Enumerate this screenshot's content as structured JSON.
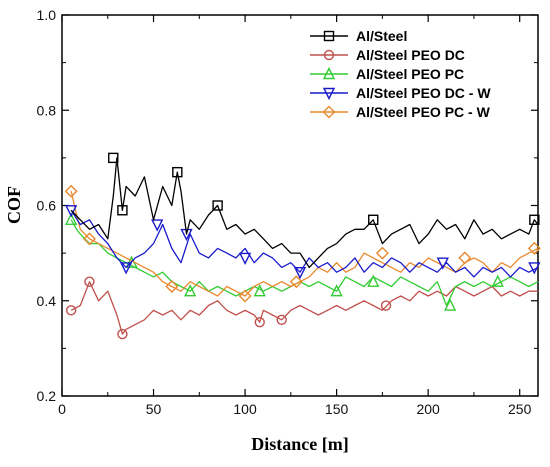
{
  "chart_data": {
    "type": "line",
    "xlabel": "Distance [m]",
    "ylabel": "COF",
    "xlim": [
      0,
      260
    ],
    "ylim": [
      0.2,
      1.0
    ],
    "xticks": [
      0,
      50,
      100,
      150,
      200,
      250
    ],
    "yticks": [
      0.2,
      0.4,
      0.6,
      0.8,
      1.0
    ],
    "legend_position": "top-right",
    "grid": false,
    "series": [
      {
        "name": "Al/Steel",
        "color": "#000000",
        "marker": "square",
        "x": [
          5,
          10,
          15,
          20,
          25,
          28,
          30,
          33,
          35,
          40,
          45,
          50,
          55,
          60,
          63,
          65,
          68,
          70,
          75,
          80,
          85,
          90,
          95,
          100,
          105,
          110,
          115,
          120,
          125,
          130,
          135,
          140,
          145,
          150,
          155,
          160,
          165,
          170,
          175,
          180,
          185,
          190,
          195,
          200,
          205,
          210,
          215,
          220,
          225,
          230,
          235,
          240,
          245,
          250,
          255,
          258,
          260
        ],
        "y": [
          0.59,
          0.57,
          0.55,
          0.56,
          0.53,
          0.62,
          0.7,
          0.59,
          0.64,
          0.62,
          0.66,
          0.57,
          0.64,
          0.6,
          0.67,
          0.63,
          0.54,
          0.57,
          0.55,
          0.58,
          0.6,
          0.55,
          0.56,
          0.54,
          0.55,
          0.53,
          0.51,
          0.52,
          0.5,
          0.5,
          0.47,
          0.49,
          0.51,
          0.52,
          0.54,
          0.55,
          0.55,
          0.57,
          0.52,
          0.54,
          0.55,
          0.56,
          0.52,
          0.54,
          0.57,
          0.55,
          0.56,
          0.53,
          0.57,
          0.54,
          0.55,
          0.53,
          0.54,
          0.55,
          0.54,
          0.57,
          0.56
        ],
        "marker_x": [
          28,
          33,
          63,
          85,
          170,
          258
        ],
        "marker_y": [
          0.7,
          0.59,
          0.67,
          0.6,
          0.57,
          0.57
        ]
      },
      {
        "name": "Al/Steel PEO DC",
        "color": "#c0504d",
        "marker": "circle",
        "x": [
          5,
          10,
          15,
          20,
          25,
          30,
          33,
          35,
          40,
          45,
          50,
          55,
          60,
          65,
          70,
          75,
          80,
          85,
          90,
          95,
          100,
          105,
          108,
          110,
          115,
          120,
          125,
          130,
          135,
          140,
          145,
          150,
          155,
          160,
          165,
          170,
          175,
          180,
          185,
          190,
          195,
          200,
          205,
          210,
          215,
          220,
          225,
          230,
          235,
          240,
          245,
          250,
          255,
          260
        ],
        "y": [
          0.38,
          0.39,
          0.44,
          0.4,
          0.42,
          0.37,
          0.33,
          0.34,
          0.35,
          0.36,
          0.38,
          0.37,
          0.38,
          0.36,
          0.38,
          0.37,
          0.39,
          0.4,
          0.38,
          0.37,
          0.38,
          0.37,
          0.355,
          0.38,
          0.37,
          0.36,
          0.38,
          0.39,
          0.38,
          0.37,
          0.38,
          0.39,
          0.38,
          0.39,
          0.4,
          0.39,
          0.38,
          0.4,
          0.41,
          0.4,
          0.42,
          0.41,
          0.42,
          0.41,
          0.43,
          0.42,
          0.41,
          0.42,
          0.43,
          0.41,
          0.42,
          0.41,
          0.42,
          0.42
        ],
        "marker_x": [
          5,
          15,
          33,
          108,
          120,
          177
        ],
        "marker_y": [
          0.38,
          0.44,
          0.33,
          0.355,
          0.36,
          0.39
        ]
      },
      {
        "name": "Al/Steel PEO PC",
        "color": "#33cc33",
        "marker": "triangle-up",
        "x": [
          5,
          8,
          10,
          15,
          20,
          25,
          30,
          35,
          40,
          45,
          50,
          55,
          60,
          65,
          70,
          75,
          80,
          85,
          90,
          95,
          100,
          105,
          110,
          115,
          120,
          125,
          130,
          135,
          140,
          145,
          150,
          155,
          160,
          165,
          170,
          175,
          180,
          185,
          190,
          195,
          200,
          205,
          210,
          215,
          220,
          225,
          230,
          235,
          240,
          245,
          250,
          255,
          260
        ],
        "y": [
          0.57,
          0.55,
          0.54,
          0.52,
          0.52,
          0.5,
          0.49,
          0.48,
          0.47,
          0.46,
          0.45,
          0.46,
          0.44,
          0.43,
          0.42,
          0.44,
          0.42,
          0.43,
          0.42,
          0.41,
          0.42,
          0.43,
          0.42,
          0.43,
          0.42,
          0.43,
          0.44,
          0.43,
          0.44,
          0.43,
          0.42,
          0.45,
          0.44,
          0.43,
          0.45,
          0.44,
          0.43,
          0.45,
          0.44,
          0.43,
          0.42,
          0.44,
          0.39,
          0.43,
          0.44,
          0.43,
          0.44,
          0.43,
          0.44,
          0.45,
          0.44,
          0.43,
          0.44
        ],
        "marker_x": [
          5,
          38,
          70,
          108,
          150,
          170,
          212,
          238
        ],
        "marker_y": [
          0.57,
          0.48,
          0.42,
          0.42,
          0.42,
          0.44,
          0.39,
          0.44
        ]
      },
      {
        "name": "Al/Steel PEO DC - W",
        "color": "#1a1acc",
        "marker": "triangle-down",
        "x": [
          5,
          10,
          15,
          20,
          25,
          30,
          35,
          40,
          45,
          50,
          55,
          60,
          65,
          70,
          75,
          80,
          85,
          90,
          95,
          100,
          105,
          110,
          115,
          120,
          125,
          130,
          135,
          140,
          145,
          150,
          155,
          160,
          165,
          170,
          175,
          180,
          185,
          190,
          195,
          200,
          205,
          210,
          215,
          220,
          225,
          230,
          235,
          240,
          245,
          250,
          255,
          260
        ],
        "y": [
          0.59,
          0.56,
          0.57,
          0.54,
          0.52,
          0.49,
          0.47,
          0.49,
          0.5,
          0.52,
          0.56,
          0.51,
          0.48,
          0.54,
          0.5,
          0.49,
          0.51,
          0.5,
          0.49,
          0.51,
          0.48,
          0.5,
          0.49,
          0.47,
          0.48,
          0.46,
          0.49,
          0.47,
          0.48,
          0.46,
          0.47,
          0.49,
          0.46,
          0.48,
          0.47,
          0.49,
          0.48,
          0.46,
          0.48,
          0.47,
          0.46,
          0.48,
          0.46,
          0.47,
          0.45,
          0.47,
          0.46,
          0.47,
          0.45,
          0.47,
          0.46,
          0.47
        ],
        "marker_x": [
          5,
          35,
          52,
          68,
          100,
          130,
          208,
          258
        ],
        "marker_y": [
          0.59,
          0.47,
          0.56,
          0.54,
          0.49,
          0.46,
          0.48,
          0.47
        ]
      },
      {
        "name": "Al/Steel PEO PC - W",
        "color": "#e8892e",
        "marker": "diamond",
        "x": [
          5,
          8,
          10,
          15,
          20,
          25,
          30,
          35,
          40,
          45,
          50,
          55,
          60,
          65,
          70,
          75,
          80,
          85,
          90,
          95,
          100,
          105,
          110,
          115,
          120,
          125,
          130,
          135,
          140,
          145,
          150,
          155,
          160,
          165,
          170,
          175,
          180,
          185,
          190,
          195,
          200,
          205,
          210,
          215,
          220,
          225,
          230,
          235,
          240,
          245,
          250,
          255,
          260
        ],
        "y": [
          0.63,
          0.58,
          0.55,
          0.53,
          0.52,
          0.51,
          0.5,
          0.49,
          0.48,
          0.47,
          0.46,
          0.44,
          0.43,
          0.42,
          0.44,
          0.43,
          0.42,
          0.41,
          0.43,
          0.42,
          0.41,
          0.43,
          0.44,
          0.43,
          0.44,
          0.43,
          0.44,
          0.45,
          0.47,
          0.46,
          0.48,
          0.46,
          0.47,
          0.5,
          0.49,
          0.48,
          0.47,
          0.46,
          0.48,
          0.47,
          0.49,
          0.48,
          0.47,
          0.46,
          0.48,
          0.49,
          0.48,
          0.46,
          0.48,
          0.47,
          0.49,
          0.5,
          0.51
        ],
        "marker_x": [
          5,
          15,
          60,
          100,
          128,
          175,
          220,
          258
        ],
        "marker_y": [
          0.63,
          0.53,
          0.43,
          0.41,
          0.44,
          0.5,
          0.49,
          0.51
        ]
      }
    ]
  }
}
